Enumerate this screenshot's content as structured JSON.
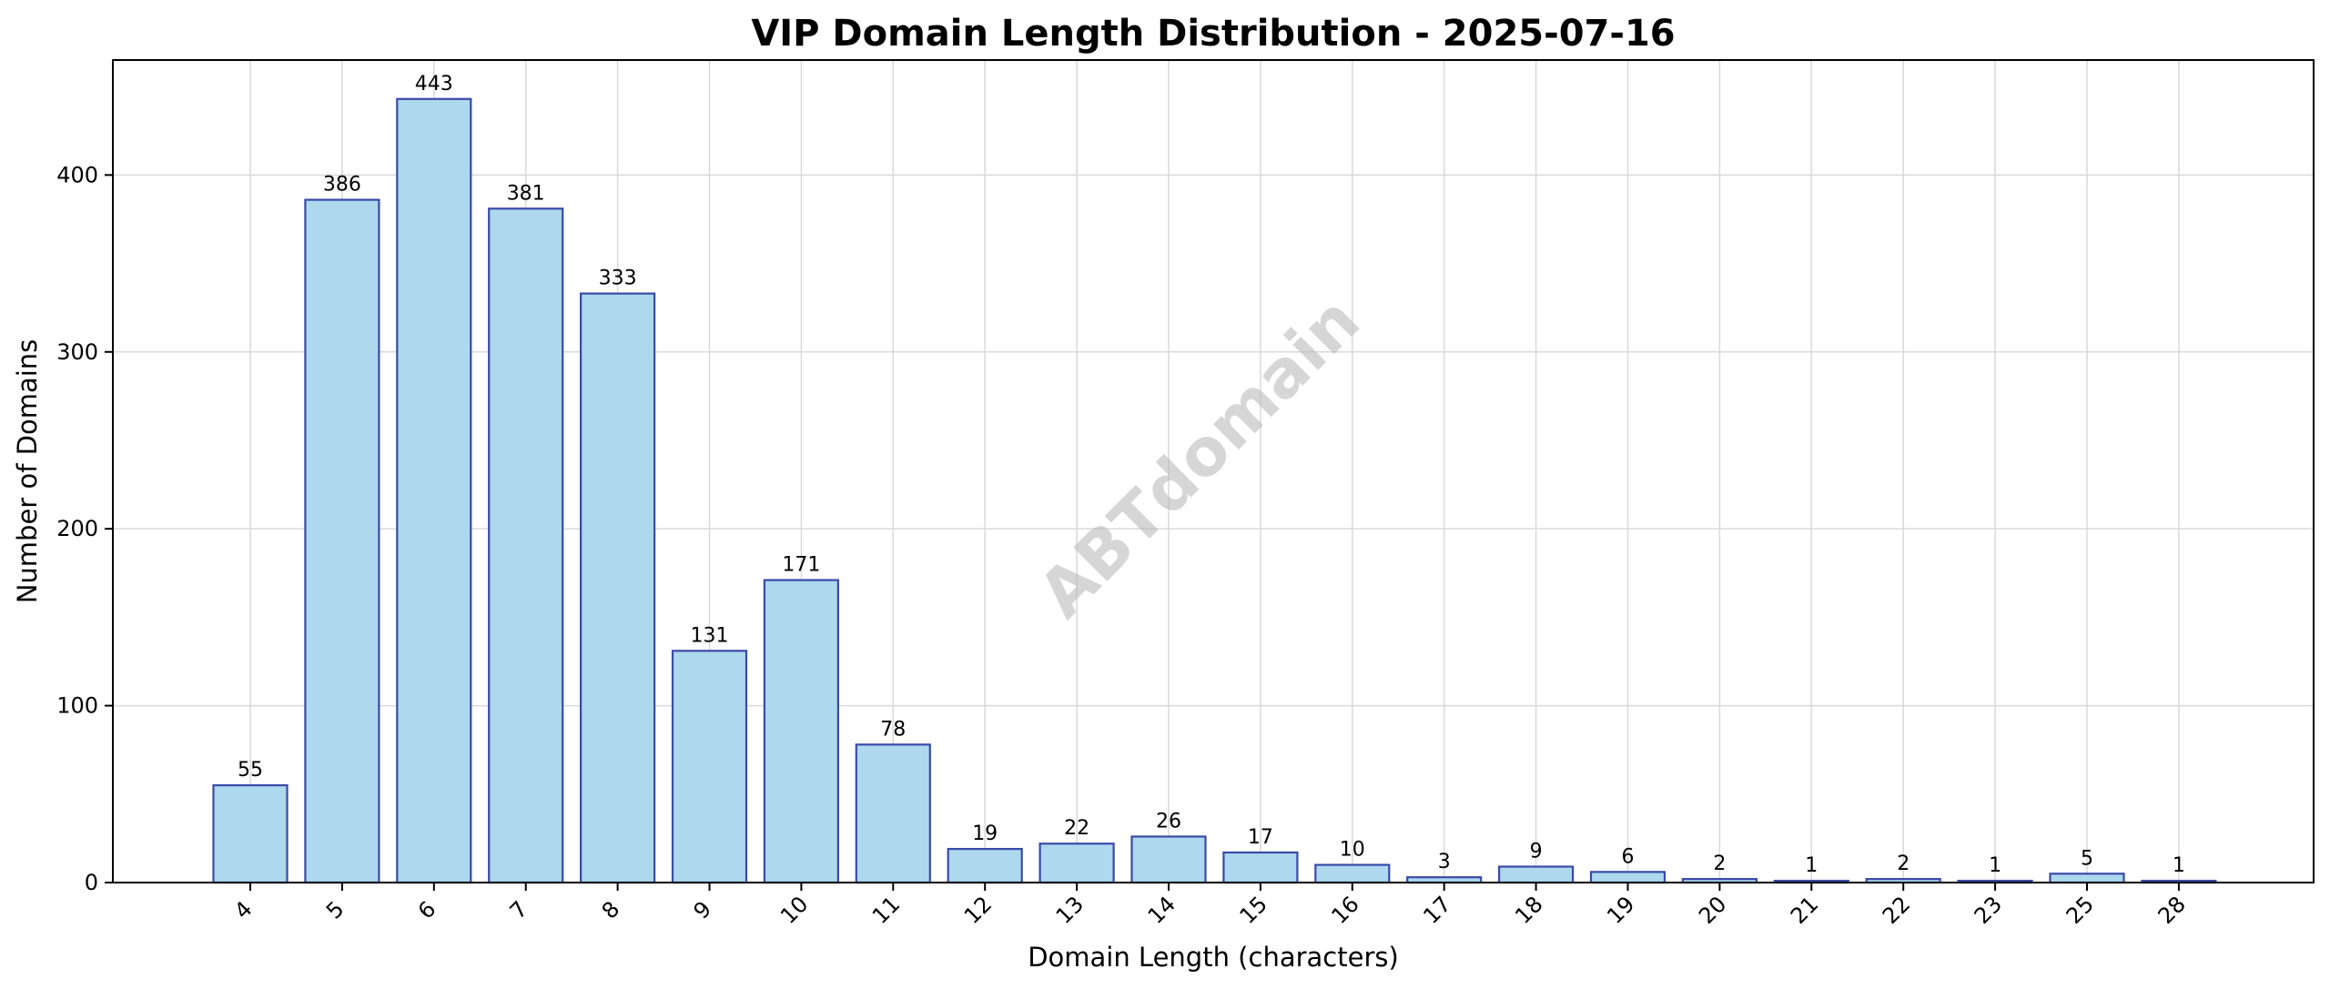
{
  "chart_data": {
    "type": "bar",
    "title": "VIP Domain Length Distribution - 2025-07-16",
    "xlabel": "Domain Length (characters)",
    "ylabel": "Number of Domains",
    "categories": [
      "4",
      "5",
      "6",
      "7",
      "8",
      "9",
      "10",
      "11",
      "12",
      "13",
      "14",
      "15",
      "16",
      "17",
      "18",
      "19",
      "20",
      "21",
      "22",
      "23",
      "25",
      "28"
    ],
    "values": [
      55,
      386,
      443,
      381,
      333,
      131,
      171,
      78,
      19,
      22,
      26,
      17,
      10,
      3,
      9,
      6,
      2,
      1,
      2,
      1,
      5,
      1
    ],
    "ylim": [
      0,
      465
    ],
    "yticks": [
      0,
      100,
      200,
      300,
      400
    ],
    "grid": true,
    "bar_color": "#add8ee",
    "bar_edge_color": "#3a4aa8",
    "watermark": "ABTdomain"
  }
}
